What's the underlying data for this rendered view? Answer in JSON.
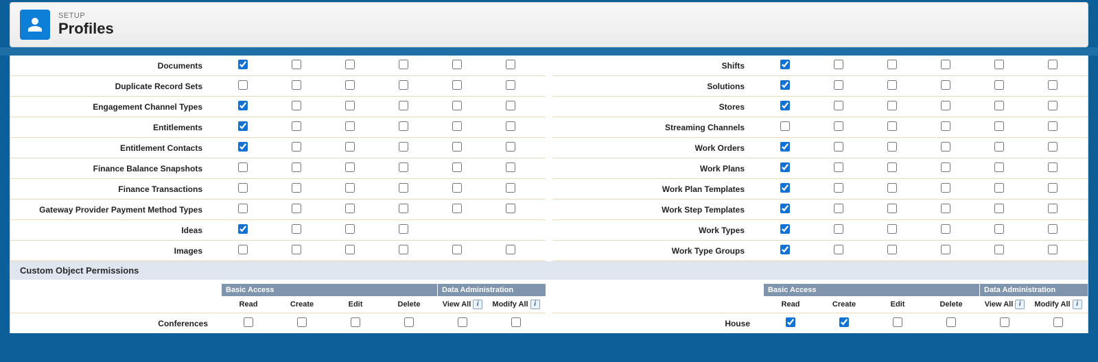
{
  "header": {
    "setup_label": "SETUP",
    "page_title": "Profiles"
  },
  "section_custom_title": "Custom Object Permissions",
  "group_headers": {
    "basic": "Basic Access",
    "data_admin": "Data Administration"
  },
  "col_headers": {
    "read": "Read",
    "create": "Create",
    "edit": "Edit",
    "delete": "Delete",
    "view_all": "View All",
    "modify_all": "Modify All"
  },
  "colors": {
    "accent": "#1172d3",
    "header_bg": "#7f95ad",
    "row_border": "#e9d9b8",
    "section_bg": "#dfe6ef",
    "page_bg": "#0d5f9a"
  },
  "left_rows": [
    {
      "label": "Documents",
      "checks": [
        true,
        false,
        false,
        false,
        false,
        false
      ],
      "cols": 6
    },
    {
      "label": "Duplicate Record Sets",
      "checks": [
        false,
        false,
        false,
        false,
        false,
        false
      ],
      "cols": 6
    },
    {
      "label": "Engagement Channel Types",
      "checks": [
        true,
        false,
        false,
        false,
        false,
        false
      ],
      "cols": 6
    },
    {
      "label": "Entitlements",
      "checks": [
        true,
        false,
        false,
        false,
        false,
        false
      ],
      "cols": 6
    },
    {
      "label": "Entitlement Contacts",
      "checks": [
        true,
        false,
        false,
        false,
        false,
        false
      ],
      "cols": 6
    },
    {
      "label": "Finance Balance Snapshots",
      "checks": [
        false,
        false,
        false,
        false,
        false,
        false
      ],
      "cols": 6
    },
    {
      "label": "Finance Transactions",
      "checks": [
        false,
        false,
        false,
        false,
        false,
        false
      ],
      "cols": 6
    },
    {
      "label": "Gateway Provider Payment Method Types",
      "checks": [
        false,
        false,
        false,
        false,
        false,
        false
      ],
      "cols": 6
    },
    {
      "label": "Ideas",
      "checks": [
        true,
        false,
        false,
        false
      ],
      "cols": 4
    },
    {
      "label": "Images",
      "checks": [
        false,
        false,
        false,
        false,
        false,
        false
      ],
      "cols": 6
    }
  ],
  "right_rows": [
    {
      "label": "Shifts",
      "checks": [
        true,
        false,
        false,
        false,
        false,
        false
      ],
      "cols": 6
    },
    {
      "label": "Solutions",
      "checks": [
        true,
        false,
        false,
        false,
        false,
        false
      ],
      "cols": 6
    },
    {
      "label": "Stores",
      "checks": [
        true,
        false,
        false,
        false,
        false,
        false
      ],
      "cols": 6
    },
    {
      "label": "Streaming Channels",
      "checks": [
        false,
        false,
        false,
        false,
        false,
        false
      ],
      "cols": 6
    },
    {
      "label": "Work Orders",
      "checks": [
        true,
        false,
        false,
        false,
        false,
        false
      ],
      "cols": 6
    },
    {
      "label": "Work Plans",
      "checks": [
        true,
        false,
        false,
        false,
        false,
        false
      ],
      "cols": 6
    },
    {
      "label": "Work Plan Templates",
      "checks": [
        true,
        false,
        false,
        false,
        false,
        false
      ],
      "cols": 6
    },
    {
      "label": "Work Step Templates",
      "checks": [
        true,
        false,
        false,
        false,
        false,
        false
      ],
      "cols": 6
    },
    {
      "label": "Work Types",
      "checks": [
        true,
        false,
        false,
        false,
        false,
        false
      ],
      "cols": 6
    },
    {
      "label": "Work Type Groups",
      "checks": [
        true,
        false,
        false,
        false,
        false,
        false
      ],
      "cols": 6
    }
  ],
  "custom_left_rows": [
    {
      "label": "Conferences",
      "checks": [
        false,
        false,
        false,
        false,
        false,
        false
      ]
    }
  ],
  "custom_right_rows": [
    {
      "label": "House",
      "checks": [
        true,
        true,
        false,
        false,
        false,
        false
      ]
    }
  ]
}
